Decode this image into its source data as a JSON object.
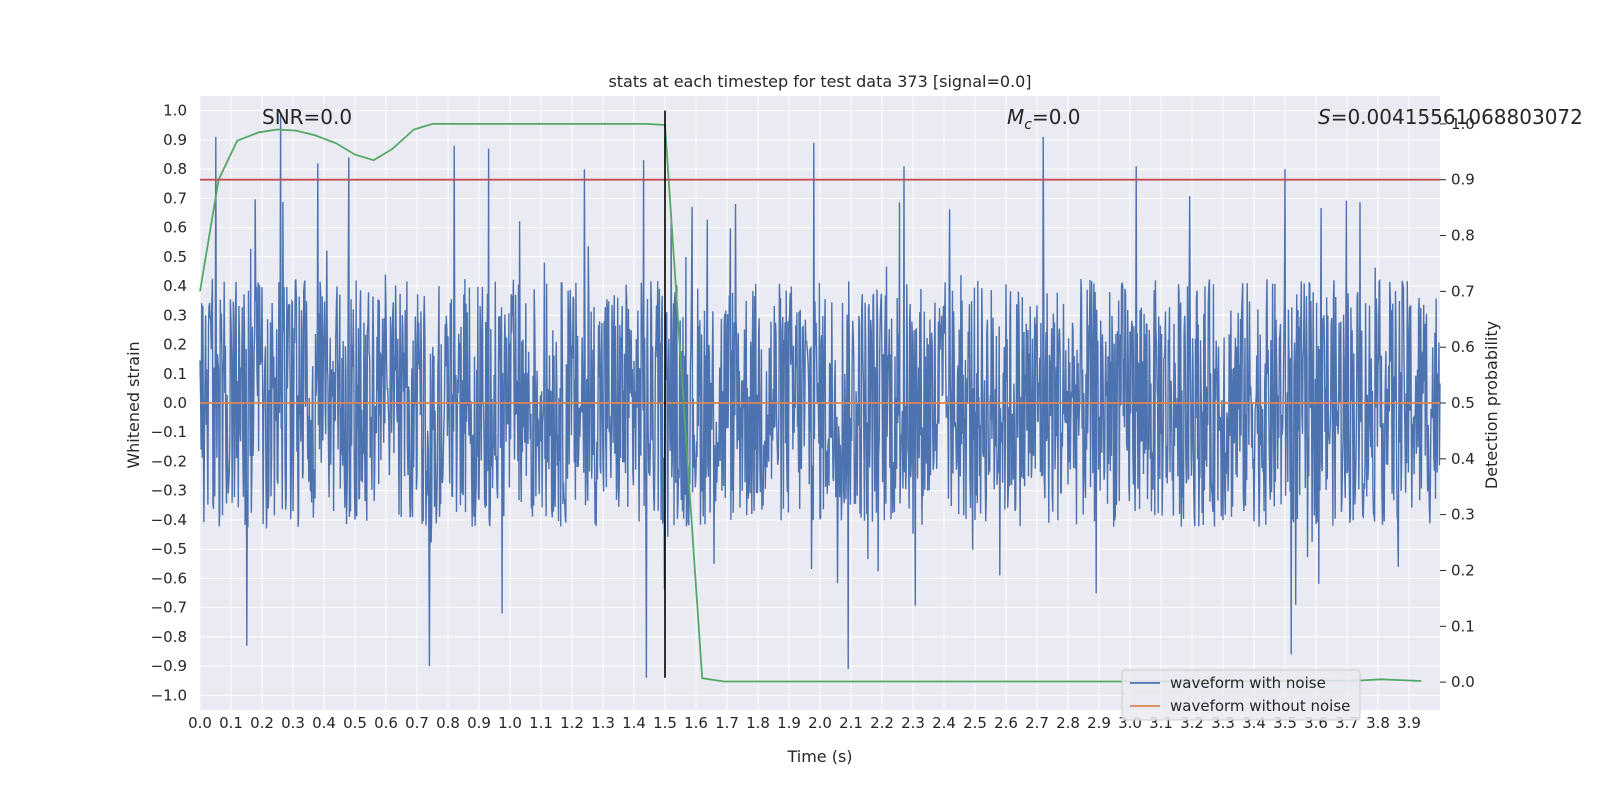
{
  "chart_data": {
    "type": "line",
    "title": "stats at each timestep for test data 373 [signal=0.0]",
    "xlabel": "Time (s)",
    "ylabel": "Whitened strain",
    "ylabel_right": "Detection probability",
    "xlim": [
      0.0,
      4.0
    ],
    "ylim": [
      -1.05,
      1.05
    ],
    "ylim_right": [
      -0.05,
      1.05
    ],
    "xticks": [
      "0.0",
      "0.1",
      "0.2",
      "0.3",
      "0.4",
      "0.5",
      "0.6",
      "0.7",
      "0.8",
      "0.9",
      "1.0",
      "1.1",
      "1.2",
      "1.3",
      "1.4",
      "1.5",
      "1.6",
      "1.7",
      "1.8",
      "1.9",
      "2.0",
      "2.1",
      "2.2",
      "2.3",
      "2.4",
      "2.5",
      "2.6",
      "2.7",
      "2.8",
      "2.9",
      "3.0",
      "3.1",
      "3.2",
      "3.3",
      "3.4",
      "3.5",
      "3.6",
      "3.7",
      "3.8",
      "3.9"
    ],
    "yticks": [
      "1.0",
      "0.9",
      "0.8",
      "0.7",
      "0.6",
      "0.5",
      "0.4",
      "0.3",
      "0.2",
      "0.1",
      "0.0",
      "−0.1",
      "−0.2",
      "−0.3",
      "−0.4",
      "−0.5",
      "−0.6",
      "−0.7",
      "−0.8",
      "−0.9",
      "−1.0"
    ],
    "yticks_right": [
      "1.0",
      "0.9",
      "0.8",
      "0.7",
      "0.6",
      "0.5",
      "0.4",
      "0.3",
      "0.2",
      "0.1",
      "0.0"
    ],
    "grid": true,
    "legend_position": "lower-right",
    "annotations": {
      "snr": "SNR=0.0",
      "mc_symbol": "M",
      "mc_sub": "c",
      "mc_value": "=0.0",
      "s_symbol": "S",
      "s_value": "=0.004155610688030​72"
    },
    "series": [
      {
        "name": "waveform with noise",
        "color": "#4c72b0",
        "note": "dense noise trace, amplitude mostly within ±0.45 with peaks to ±1.0",
        "peaks": [
          [
            0.05,
            0.91
          ],
          [
            0.26,
            0.99
          ],
          [
            0.38,
            0.82
          ],
          [
            0.48,
            0.84
          ],
          [
            0.82,
            0.88
          ],
          [
            0.93,
            0.87
          ],
          [
            1.24,
            0.8
          ],
          [
            1.43,
            0.83
          ],
          [
            1.98,
            0.89
          ],
          [
            2.27,
            0.81
          ],
          [
            2.72,
            0.91
          ],
          [
            3.02,
            0.81
          ],
          [
            3.5,
            0.8
          ],
          [
            1.44,
            -0.94
          ],
          [
            2.09,
            -0.91
          ],
          [
            0.74,
            -0.9
          ],
          [
            3.52,
            -0.86
          ],
          [
            0.15,
            -0.83
          ]
        ]
      },
      {
        "name": "waveform without noise",
        "color": "#dd8452",
        "x": [
          0.0,
          4.0
        ],
        "y": [
          0.0,
          0.0
        ]
      },
      {
        "axis": "right",
        "color": "#55a868",
        "x": [
          0.0,
          0.06,
          0.12,
          0.19,
          0.25,
          0.31,
          0.37,
          0.44,
          0.5,
          0.56,
          0.62,
          0.69,
          0.75,
          0.81,
          0.87,
          0.94,
          1.0,
          1.06,
          1.12,
          1.19,
          1.25,
          1.31,
          1.37,
          1.44,
          1.5,
          1.56,
          1.62,
          1.69,
          1.75,
          2.0,
          2.5,
          3.0,
          3.5,
          3.75,
          3.81,
          3.94
        ],
        "y": [
          0.7,
          0.9,
          0.97,
          0.985,
          0.99,
          0.988,
          0.98,
          0.965,
          0.945,
          0.935,
          0.955,
          0.99,
          1.0,
          1.0,
          1.0,
          1.0,
          1.0,
          1.0,
          1.0,
          1.0,
          1.0,
          1.0,
          1.0,
          1.0,
          0.998,
          0.5,
          0.007,
          0.001,
          0.001,
          0.001,
          0.001,
          0.001,
          0.002,
          0.003,
          0.005,
          0.002
        ]
      },
      {
        "axis": "right",
        "color": "#c44e52",
        "x": [
          0.0,
          4.0
        ],
        "y": [
          0.9,
          0.9
        ]
      },
      {
        "color": "#000000",
        "x": [
          1.5,
          1.5
        ],
        "y": [
          -0.94,
          1.0
        ]
      }
    ]
  }
}
